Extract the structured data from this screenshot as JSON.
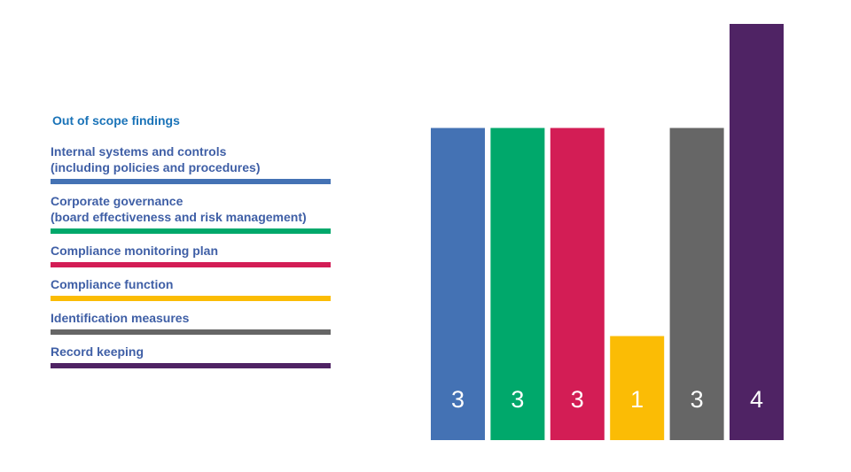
{
  "chart_data": {
    "type": "bar",
    "title": "Out of scope findings",
    "categories": [
      "Internal systems and controls (including policies and procedures)",
      "Corporate governance (board effectiveness and risk management)",
      "Compliance monitoring plan",
      "Compliance function",
      "Identification measures",
      "Record keeping"
    ],
    "category_lines": [
      [
        "Internal systems and controls",
        "(including policies and procedures)"
      ],
      [
        "Corporate governance",
        "(board effectiveness and risk management)"
      ],
      [
        "Compliance monitoring plan"
      ],
      [
        "Compliance function"
      ],
      [
        "Identification measures"
      ],
      [
        "Record keeping"
      ]
    ],
    "values": [
      3,
      3,
      3,
      1,
      3,
      4
    ],
    "colors": [
      "#4472b4",
      "#00a86b",
      "#d31d55",
      "#fbbc05",
      "#666666",
      "#4f2364"
    ],
    "ylim": [
      0,
      4
    ],
    "legend_position": "left",
    "data_labels": "inside-bottom",
    "grid": false
  }
}
